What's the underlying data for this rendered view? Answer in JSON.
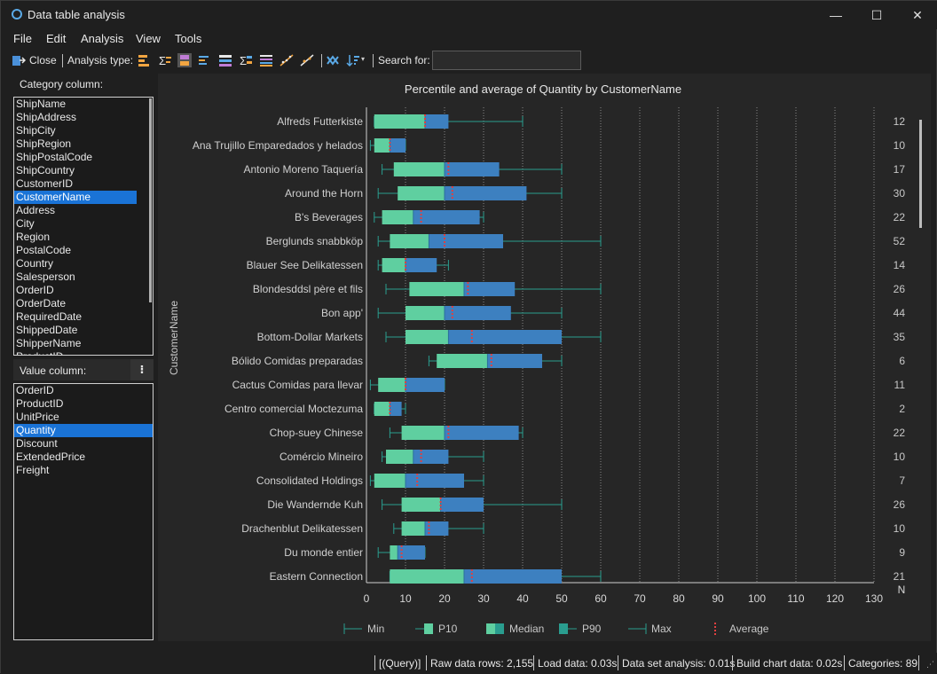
{
  "window": {
    "title": "Data table analysis",
    "minimize_label": "—",
    "maximize_label": "☐",
    "close_label": "✕"
  },
  "menu": [
    "File",
    "Edit",
    "Analysis",
    "View",
    "Tools"
  ],
  "toolbar": {
    "close_label": "Close",
    "analysis_type_label": "Analysis type:",
    "search_label": "Search for:",
    "search_value": ""
  },
  "category_panel": {
    "label": "Category column:",
    "items": [
      "ShipName",
      "ShipAddress",
      "ShipCity",
      "ShipRegion",
      "ShipPostalCode",
      "ShipCountry",
      "CustomerID",
      "CustomerName",
      "Address",
      "City",
      "Region",
      "PostalCode",
      "Country",
      "Salesperson",
      "OrderID",
      "OrderDate",
      "RequiredDate",
      "ShippedDate",
      "ShipperName",
      "ProductID"
    ],
    "selected": "CustomerName"
  },
  "value_panel": {
    "label": "Value column:",
    "sort_icon": "sort-icon",
    "items": [
      "OrderID",
      "ProductID",
      "UnitPrice",
      "Quantity",
      "Discount",
      "ExtendedPrice",
      "Freight"
    ],
    "selected": "Quantity"
  },
  "chart_data": {
    "type": "box",
    "title": "Percentile and average of Quantity by CustomerName",
    "ylabel": "CustomerName",
    "xlim": [
      0,
      130
    ],
    "x_ticks": [
      0,
      10,
      20,
      30,
      40,
      50,
      60,
      70,
      80,
      90,
      100,
      110,
      120,
      130
    ],
    "count_axis_label": "N",
    "grid": "vertical dotted",
    "legend_position": "bottom",
    "legend": [
      "Min",
      "P10",
      "Median",
      "P90",
      "Max",
      "Average"
    ],
    "colors": {
      "p10_box": "#5fcfa0",
      "p90_box": "#3d80c0",
      "whisker": "#2a9d8f",
      "average": "#e04040"
    },
    "categories": [
      {
        "name": "Alfreds Futterkiste",
        "min": 2,
        "p10": 2,
        "median": 15,
        "p90": 21,
        "max": 40,
        "avg": 15,
        "n": 12
      },
      {
        "name": "Ana Trujillo Emparedados y helados",
        "min": 1,
        "p10": 2,
        "median": 6,
        "p90": 10,
        "max": 10,
        "avg": 6,
        "n": 10
      },
      {
        "name": "Antonio Moreno Taquería",
        "min": 4,
        "p10": 7,
        "median": 20,
        "p90": 34,
        "max": 50,
        "avg": 21,
        "n": 17
      },
      {
        "name": "Around the Horn",
        "min": 3,
        "p10": 8,
        "median": 20,
        "p90": 41,
        "max": 50,
        "avg": 22,
        "n": 30
      },
      {
        "name": "B's Beverages",
        "min": 2,
        "p10": 4,
        "median": 12,
        "p90": 29,
        "max": 30,
        "avg": 14,
        "n": 22
      },
      {
        "name": "Berglunds snabbköp",
        "min": 3,
        "p10": 6,
        "median": 16,
        "p90": 35,
        "max": 60,
        "avg": 20,
        "n": 52
      },
      {
        "name": "Blauer See Delikatessen",
        "min": 3,
        "p10": 4,
        "median": 10,
        "p90": 18,
        "max": 21,
        "avg": 10,
        "n": 14
      },
      {
        "name": "Blondesddsl père et fils",
        "min": 5,
        "p10": 11,
        "median": 25,
        "p90": 38,
        "max": 60,
        "avg": 26,
        "n": 26
      },
      {
        "name": "Bon app'",
        "min": 3,
        "p10": 10,
        "median": 20,
        "p90": 37,
        "max": 50,
        "avg": 22,
        "n": 44
      },
      {
        "name": "Bottom-Dollar Markets",
        "min": 5,
        "p10": 10,
        "median": 21,
        "p90": 50,
        "max": 60,
        "avg": 27,
        "n": 35
      },
      {
        "name": "Bólido Comidas preparadas",
        "min": 16,
        "p10": 18,
        "median": 31,
        "p90": 45,
        "max": 50,
        "avg": 32,
        "n": 6
      },
      {
        "name": "Cactus Comidas para llevar",
        "min": 1,
        "p10": 3,
        "median": 10,
        "p90": 20,
        "max": 20,
        "avg": 10,
        "n": 11
      },
      {
        "name": "Centro comercial Moctezuma",
        "min": 2,
        "p10": 2,
        "median": 6,
        "p90": 9,
        "max": 10,
        "avg": 6,
        "n": 2
      },
      {
        "name": "Chop-suey Chinese",
        "min": 6,
        "p10": 9,
        "median": 20,
        "p90": 39,
        "max": 40,
        "avg": 21,
        "n": 22
      },
      {
        "name": "Comércio Mineiro",
        "min": 4,
        "p10": 5,
        "median": 12,
        "p90": 21,
        "max": 30,
        "avg": 14,
        "n": 10
      },
      {
        "name": "Consolidated Holdings",
        "min": 1,
        "p10": 2,
        "median": 10,
        "p90": 25,
        "max": 30,
        "avg": 13,
        "n": 7
      },
      {
        "name": "Die Wandernde Kuh",
        "min": 4,
        "p10": 9,
        "median": 19,
        "p90": 30,
        "max": 50,
        "avg": 19,
        "n": 26
      },
      {
        "name": "Drachenblut Delikatessen",
        "min": 7,
        "p10": 9,
        "median": 15,
        "p90": 21,
        "max": 30,
        "avg": 16,
        "n": 10
      },
      {
        "name": "Du monde entier",
        "min": 3,
        "p10": 6,
        "median": 8,
        "p90": 15,
        "max": 15,
        "avg": 9,
        "n": 9
      },
      {
        "name": "Eastern Connection",
        "min": 6,
        "p10": 6,
        "median": 25,
        "p90": 50,
        "max": 60,
        "avg": 27,
        "n": 21
      }
    ]
  },
  "status": {
    "query": "[(Query)]",
    "raw_rows": "Raw data rows: 2,155",
    "load": "Load data: 0.03s",
    "analysis": "Data set analysis: 0.01s",
    "build": "Build chart data: 0.02s",
    "categories": "Categories: 89"
  }
}
